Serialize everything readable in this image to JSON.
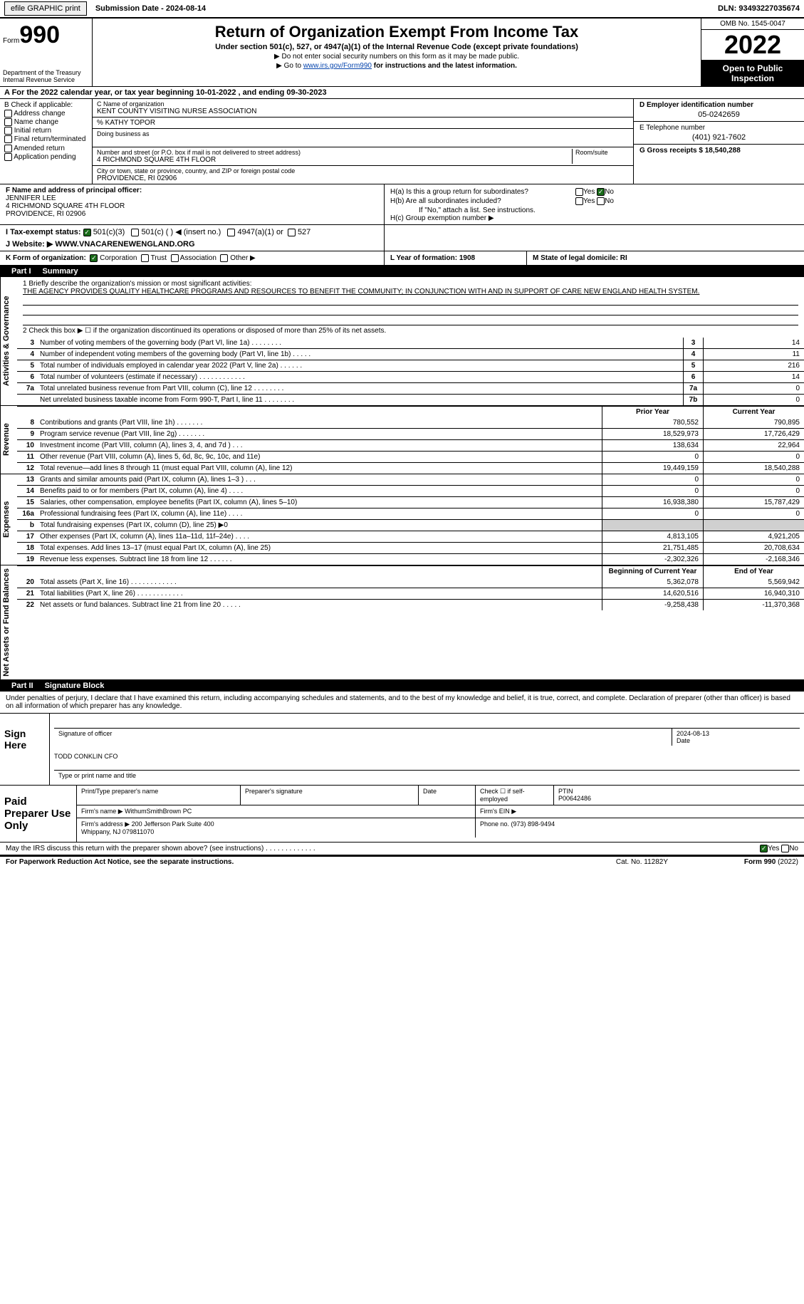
{
  "topbar": {
    "efile_btn": "efile GRAPHIC print",
    "sub_date_label": "Submission Date - 2024-08-14",
    "dln": "DLN: 93493227035674"
  },
  "header": {
    "form_label": "Form",
    "form_num": "990",
    "dept": "Department of the Treasury Internal Revenue Service",
    "title": "Return of Organization Exempt From Income Tax",
    "subtitle": "Under section 501(c), 527, or 4947(a)(1) of the Internal Revenue Code (except private foundations)",
    "note1": "▶ Do not enter social security numbers on this form as it may be made public.",
    "note2_pre": "▶ Go to ",
    "note2_link": "www.irs.gov/Form990",
    "note2_post": " for instructions and the latest information.",
    "omb": "OMB No. 1545-0047",
    "year": "2022",
    "inspection": "Open to Public Inspection"
  },
  "row_a": "A For the 2022 calendar year, or tax year beginning 10-01-2022    , and ending 09-30-2023",
  "b": {
    "label": "B Check if applicable:",
    "opts": [
      "Address change",
      "Name change",
      "Initial return",
      "Final return/terminated",
      "Amended return",
      "Application pending"
    ]
  },
  "c": {
    "name_lbl": "C Name of organization",
    "name": "KENT COUNTY VISITING NURSE ASSOCIATION",
    "care_of": "% KATHY TOPOR",
    "dba_lbl": "Doing business as",
    "street_lbl": "Number and street (or P.O. box if mail is not delivered to street address)",
    "street": "4 RICHMOND SQUARE 4TH FLOOR",
    "room_lbl": "Room/suite",
    "city_lbl": "City or town, state or province, country, and ZIP or foreign postal code",
    "city": "PROVIDENCE, RI  02906"
  },
  "d": {
    "ein_lbl": "D Employer identification number",
    "ein": "05-0242659",
    "phone_lbl": "E Telephone number",
    "phone": "(401) 921-7602",
    "gross_lbl": "G Gross receipts $ 18,540,288"
  },
  "f": {
    "lbl": "F  Name and address of principal officer:",
    "name": "JENNIFER LEE",
    "addr1": "4 RICHMOND SQUARE 4TH FLOOR",
    "addr2": "PROVIDENCE, RI  02906",
    "tax_lbl": "I   Tax-exempt status:",
    "tax_opts": [
      "501(c)(3)",
      "501(c) (  ) ◀ (insert no.)",
      "4947(a)(1) or",
      "527"
    ],
    "web_lbl": "J   Website: ▶  WWW.VNACARENEWENGLAND.ORG"
  },
  "h": {
    "a_lbl": "H(a)  Is this a group return for subordinates?",
    "b_lbl": "H(b)  Are all subordinates included?",
    "note": "If \"No,\" attach a list. See instructions.",
    "c_lbl": "H(c)  Group exemption number ▶"
  },
  "k": {
    "lbl": "K Form of organization:",
    "opts": [
      "Corporation",
      "Trust",
      "Association",
      "Other ▶"
    ],
    "l": "L Year of formation: 1908",
    "m": "M State of legal domicile: RI"
  },
  "part1": {
    "label": "Part I",
    "title": "Summary",
    "q1": "1   Briefly describe the organization's mission or most significant activities:",
    "mission": "THE AGENCY PROVIDES QUALITY HEALTHCARE PROGRAMS AND RESOURCES TO BENEFIT THE COMMUNITY; IN CONJUNCTION WITH AND IN SUPPORT OF CARE NEW ENGLAND HEALTH SYSTEM.",
    "q2": "2   Check this box ▶ ☐  if the organization discontinued its operations or disposed of more than 25% of its net assets."
  },
  "gov_lines": [
    {
      "n": "3",
      "d": "Number of voting members of the governing body (Part VI, line 1a)   .    .    .    .    .    .    .    .",
      "box": "3",
      "v": "14"
    },
    {
      "n": "4",
      "d": "Number of independent voting members of the governing body (Part VI, line 1b)   .    .    .    .    .",
      "box": "4",
      "v": "11"
    },
    {
      "n": "5",
      "d": "Total number of individuals employed in calendar year 2022 (Part V, line 2a)   .    .    .    .    .    .",
      "box": "5",
      "v": "216"
    },
    {
      "n": "6",
      "d": "Total number of volunteers (estimate if necessary)    .    .    .    .    .    .    .    .    .    .    .    .",
      "box": "6",
      "v": "14"
    },
    {
      "n": "7a",
      "d": "Total unrelated business revenue from Part VIII, column (C), line 12   .    .    .    .    .    .    .    .",
      "box": "7a",
      "v": "0"
    },
    {
      "n": "",
      "d": "Net unrelated business taxable income from Form 990-T, Part I, line 11  .    .    .    .    .    .    .    .",
      "box": "7b",
      "v": "0"
    }
  ],
  "rev_hdr": {
    "prior": "Prior Year",
    "curr": "Current Year"
  },
  "rev_lines": [
    {
      "n": "8",
      "d": "Contributions and grants (Part VIII, line 1h)    .    .    .    .    .    .    .",
      "p": "780,552",
      "c": "790,895"
    },
    {
      "n": "9",
      "d": "Program service revenue (Part VIII, line 2g)    .    .    .    .    .    .    .",
      "p": "18,529,973",
      "c": "17,726,429"
    },
    {
      "n": "10",
      "d": "Investment income (Part VIII, column (A), lines 3, 4, and 7d )    .    .    .",
      "p": "138,634",
      "c": "22,964"
    },
    {
      "n": "11",
      "d": "Other revenue (Part VIII, column (A), lines 5, 6d, 8c, 9c, 10c, and 11e)",
      "p": "0",
      "c": "0"
    },
    {
      "n": "12",
      "d": "Total revenue—add lines 8 through 11 (must equal Part VIII, column (A), line 12)",
      "p": "19,449,159",
      "c": "18,540,288"
    }
  ],
  "exp_lines": [
    {
      "n": "13",
      "d": "Grants and similar amounts paid (Part IX, column (A), lines 1–3 )   .    .    .",
      "p": "0",
      "c": "0"
    },
    {
      "n": "14",
      "d": "Benefits paid to or for members (Part IX, column (A), line 4)   .    .    .    .",
      "p": "0",
      "c": "0"
    },
    {
      "n": "15",
      "d": "Salaries, other compensation, employee benefits (Part IX, column (A), lines 5–10)",
      "p": "16,938,380",
      "c": "15,787,429"
    },
    {
      "n": "16a",
      "d": "Professional fundraising fees (Part IX, column (A), line 11e)    .    .    .    .",
      "p": "0",
      "c": "0"
    },
    {
      "n": "b",
      "d": "Total fundraising expenses (Part IX, column (D), line 25) ▶0",
      "p": "",
      "c": "",
      "grey": true
    },
    {
      "n": "17",
      "d": "Other expenses (Part IX, column (A), lines 11a–11d, 11f–24e)   .    .    .    .",
      "p": "4,813,105",
      "c": "4,921,205"
    },
    {
      "n": "18",
      "d": "Total expenses. Add lines 13–17 (must equal Part IX, column (A), line 25)",
      "p": "21,751,485",
      "c": "20,708,634"
    },
    {
      "n": "19",
      "d": "Revenue less expenses. Subtract line 18 from line 12   .    .    .    .    .    .",
      "p": "-2,302,326",
      "c": "-2,168,346"
    }
  ],
  "net_hdr": {
    "beg": "Beginning of Current Year",
    "end": "End of Year"
  },
  "net_lines": [
    {
      "n": "20",
      "d": "Total assets (Part X, line 16)   .    .    .    .    .    .    .    .    .    .    .    .",
      "p": "5,362,078",
      "c": "5,569,942"
    },
    {
      "n": "21",
      "d": "Total liabilities (Part X, line 26)   .    .    .    .    .    .    .    .    .    .    .    .",
      "p": "14,620,516",
      "c": "16,940,310"
    },
    {
      "n": "22",
      "d": "Net assets or fund balances. Subtract line 21 from line 20    .    .    .    .    .",
      "p": "-9,258,438",
      "c": "-11,370,368"
    }
  ],
  "part2": {
    "label": "Part II",
    "title": "Signature Block"
  },
  "sig": {
    "decl": "Under penalties of perjury, I declare that I have examined this return, including accompanying schedules and statements, and to the best of my knowledge and belief, it is true, correct, and complete. Declaration of preparer (other than officer) is based on all information of which preparer has any knowledge.",
    "sign_here": "Sign Here",
    "sig_officer": "Signature of officer",
    "date_val": "2024-08-13",
    "date_lbl": "Date",
    "officer_name": "TODD CONKLIN CFO",
    "type_lbl": "Type or print name and title",
    "paid_lbl": "Paid Preparer Use Only",
    "prep_name_lbl": "Print/Type preparer's name",
    "prep_sig_lbl": "Preparer's signature",
    "prep_date_lbl": "Date",
    "check_lbl": "Check ☐ if self-employed",
    "ptin_lbl": "PTIN",
    "ptin": "P00642486",
    "firm_name_lbl": "Firm's name     ▶",
    "firm_name": "WithumSmithBrown PC",
    "firm_ein_lbl": "Firm's EIN ▶",
    "firm_addr_lbl": "Firm's address ▶",
    "firm_addr": "200 Jefferson Park Suite 400\nWhippany, NJ  079811070",
    "firm_phone_lbl": "Phone no. (973) 898-9494",
    "discuss": "May the IRS discuss this return with the preparer shown above? (see instructions)    .    .    .    .    .    .    .    .    .    .    .    .    ."
  },
  "footer": {
    "left": "For Paperwork Reduction Act Notice, see the separate instructions.",
    "mid": "Cat. No. 11282Y",
    "right": "Form 990 (2022)"
  },
  "vtabs": {
    "gov": "Activities & Governance",
    "rev": "Revenue",
    "exp": "Expenses",
    "net": "Net Assets or Fund Balances"
  }
}
